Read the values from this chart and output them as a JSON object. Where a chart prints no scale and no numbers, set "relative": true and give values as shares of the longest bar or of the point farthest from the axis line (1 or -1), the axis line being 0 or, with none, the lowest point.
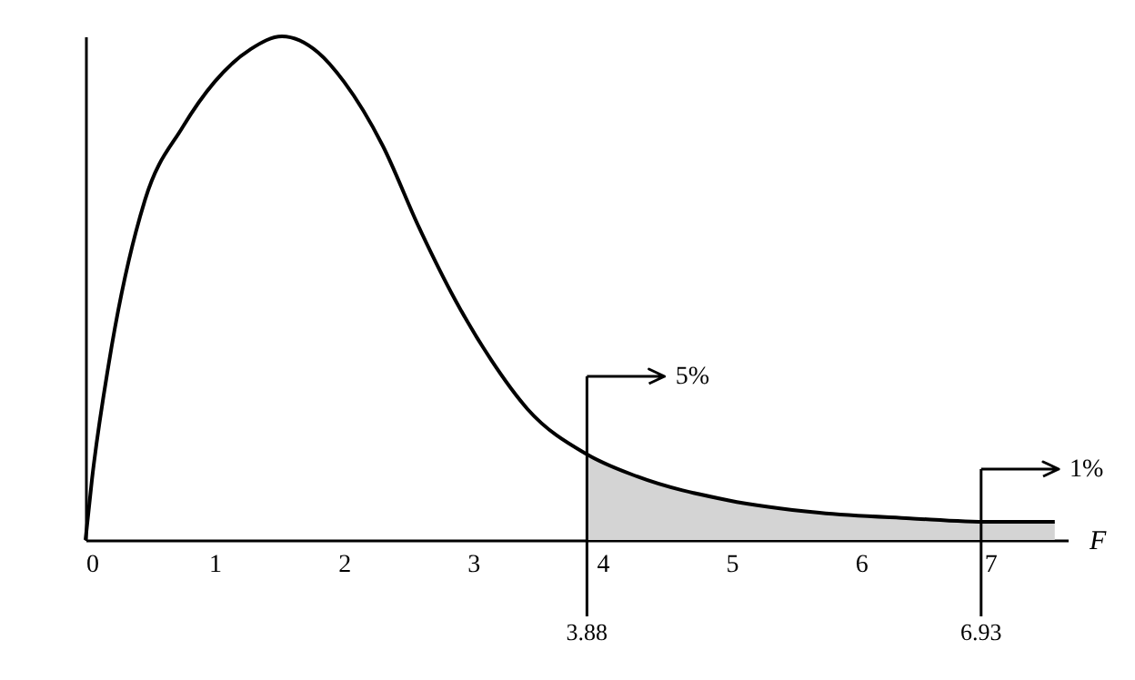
{
  "chart_data": {
    "type": "line",
    "relative": true,
    "xlabel": "F",
    "xlim": [
      0,
      7.6
    ],
    "xticks": [
      0,
      1,
      2,
      3,
      4,
      5,
      6,
      7
    ],
    "grid": false,
    "series": [
      {
        "type": "area",
        "color": "#d4d4d4",
        "x": [
          3.88,
          4.27,
          4.97,
          5.68,
          6.38,
          7.0,
          7.5
        ],
        "values": [
          0.17,
          0.126,
          0.079,
          0.054,
          0.043,
          0.036,
          0.036
        ]
      },
      {
        "color": "#000000",
        "x": [
          0,
          0.05,
          0.18,
          0.46,
          0.75,
          1.0,
          1.28,
          1.52,
          1.8,
          2.0,
          2.3,
          2.58,
          2.86,
          3.14,
          3.42,
          3.88,
          4.27,
          4.97,
          5.68,
          6.38,
          7.0,
          7.5
        ],
        "values": [
          0,
          0.12,
          0.35,
          0.675,
          0.819,
          0.91,
          0.975,
          1,
          0.968,
          0.91,
          0.783,
          0.621,
          0.477,
          0.357,
          0.26,
          0.17,
          0.126,
          0.079,
          0.054,
          0.043,
          0.036,
          0.036
        ]
      }
    ],
    "ref_lines": [
      {
        "axis": "x",
        "value": 3.88,
        "label": "3.88"
      },
      {
        "axis": "x",
        "value": 6.93,
        "label": "6.93"
      }
    ],
    "annotations": [
      "5%",
      "1%"
    ]
  }
}
